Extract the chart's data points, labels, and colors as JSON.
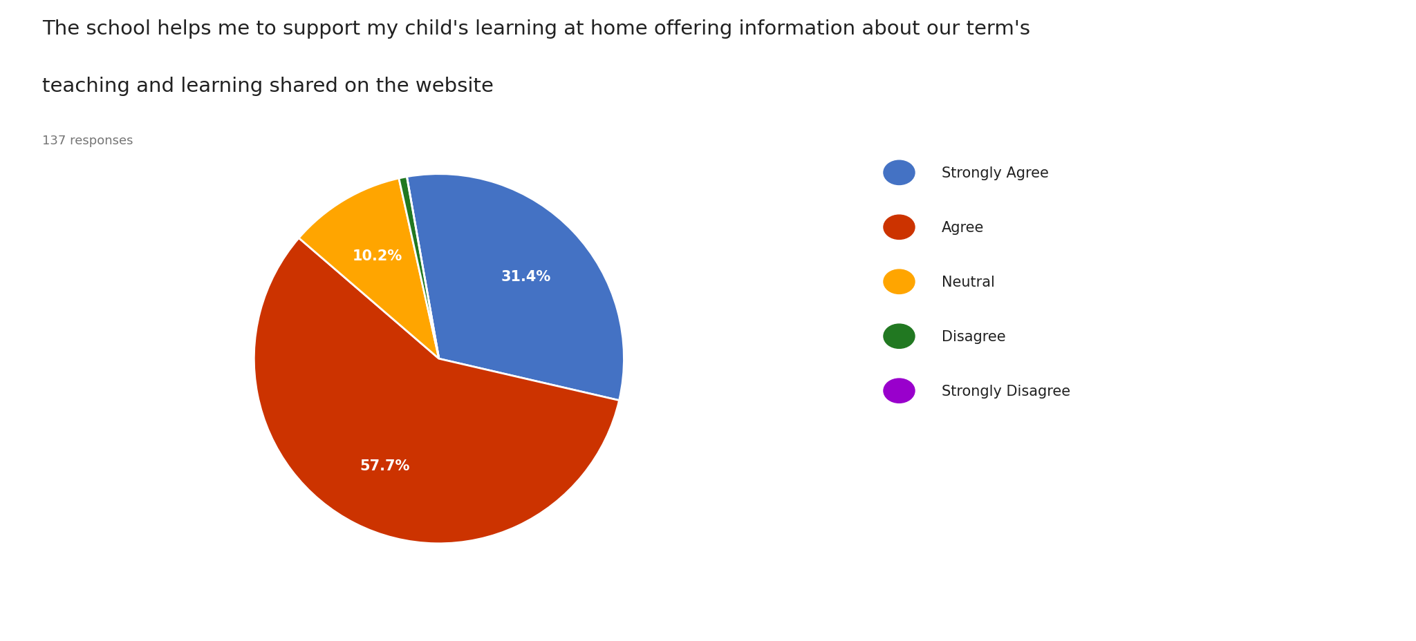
{
  "title_line1": "The school helps me to support my child's learning at home offering information about our term's",
  "title_line2": "teaching and learning shared on the website",
  "responses_label": "137 responses",
  "labels": [
    "Strongly Agree",
    "Agree",
    "Neutral",
    "Disagree",
    "Strongly Disagree"
  ],
  "values": [
    31.4,
    57.7,
    10.2,
    0.7,
    0.0
  ],
  "colors": [
    "#4472C4",
    "#CC3300",
    "#FFA500",
    "#217821",
    "#9900CC"
  ],
  "pct_labels": [
    "31.4%",
    "57.7%",
    "10.2%",
    "",
    ""
  ],
  "background_color": "#FFFFFF",
  "title_fontsize": 21,
  "responses_fontsize": 13,
  "legend_fontsize": 15,
  "pct_fontsize": 15
}
